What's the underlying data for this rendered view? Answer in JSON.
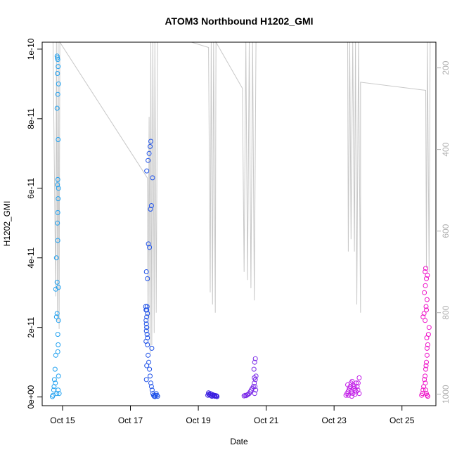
{
  "chart_data": {
    "type": "scatter",
    "title": "ATOM3 Northbound H1202_GMI",
    "xlabel": "Date",
    "ylabel": "H1202_GMI",
    "y2label": "",
    "x_ticks": [
      "Oct 15",
      "Oct 17",
      "Oct 19",
      "Oct 21",
      "Oct 23",
      "Oct 25"
    ],
    "x_tick_days": [
      15,
      17,
      19,
      21,
      23,
      25
    ],
    "xlim": [
      14.4,
      26.0
    ],
    "y_ticks": [
      "0e+00",
      "2e-11",
      "4e-11",
      "6e-11",
      "8e-11",
      "1e-10"
    ],
    "y_tick_values": [
      0,
      2e-11,
      4e-11,
      6e-11,
      8e-11,
      1e-10
    ],
    "ylim": [
      -2.5e-12,
      1.02e-10
    ],
    "y2_ticks": [
      "200",
      "400",
      "600",
      "800",
      "1000"
    ],
    "y2_tick_values": [
      200,
      400,
      600,
      800,
      1000
    ],
    "y2lim": [
      1028,
      137
    ],
    "grid": false,
    "legend": "none",
    "flight_colors": [
      "#1ea0f0",
      "#1f52e8",
      "#3a1ee0",
      "#7a28e8",
      "#c21ee8",
      "#ee12c8"
    ],
    "pressure_color": "#c8c8c8",
    "pressure_series": [
      [
        14.72,
        137
      ],
      [
        14.8,
        760
      ],
      [
        14.82,
        137
      ],
      [
        14.85,
        820
      ],
      [
        14.87,
        137
      ],
      [
        14.9,
        840
      ],
      [
        14.92,
        137
      ],
      [
        17.5,
        470
      ],
      [
        17.52,
        850
      ],
      [
        17.55,
        320
      ],
      [
        17.58,
        900
      ],
      [
        17.6,
        137
      ],
      [
        17.63,
        880
      ],
      [
        17.66,
        137
      ],
      [
        17.7,
        850
      ],
      [
        17.72,
        137
      ],
      [
        17.76,
        800
      ],
      [
        17.8,
        137
      ],
      [
        18.8,
        137
      ],
      [
        19.3,
        150
      ],
      [
        19.35,
        750
      ],
      [
        19.38,
        137
      ],
      [
        19.42,
        780
      ],
      [
        19.45,
        137
      ],
      [
        19.5,
        800
      ],
      [
        19.52,
        137
      ],
      [
        20.3,
        250
      ],
      [
        20.35,
        700
      ],
      [
        20.4,
        137
      ],
      [
        20.45,
        720
      ],
      [
        20.5,
        137
      ],
      [
        20.55,
        740
      ],
      [
        20.6,
        137
      ],
      [
        20.65,
        770
      ],
      [
        20.7,
        137
      ],
      [
        23.4,
        137
      ],
      [
        23.42,
        650
      ],
      [
        23.46,
        137
      ],
      [
        23.5,
        620
      ],
      [
        23.55,
        137
      ],
      [
        23.6,
        650
      ],
      [
        23.63,
        137
      ],
      [
        23.67,
        780
      ],
      [
        23.72,
        137
      ],
      [
        23.78,
        800
      ],
      [
        23.78,
        235
      ],
      [
        25.7,
        255
      ],
      [
        25.72,
        690
      ],
      [
        25.75,
        137
      ],
      [
        25.8,
        700
      ],
      [
        25.83,
        137
      ]
    ],
    "series": [
      {
        "x": [
          14.7,
          14.72,
          14.74,
          14.76,
          14.78,
          14.8,
          14.82,
          14.84,
          14.86,
          14.88,
          14.9,
          14.75,
          14.79,
          14.83,
          14.87,
          14.8,
          14.84,
          14.88,
          14.82,
          14.86,
          14.85,
          14.86,
          14.87,
          14.88,
          14.85,
          14.86,
          14.87,
          14.84,
          14.86,
          14.88,
          14.85,
          14.87,
          14.86,
          14.84,
          14.85,
          14.87,
          14.86,
          14.88
        ],
        "y": [
          1e-13,
          5e-13,
          2e-12,
          5e-12,
          8e-12,
          1.2e-11,
          2.3e-11,
          2.4e-11,
          1.8e-11,
          2.2e-11,
          1e-12,
          3e-12,
          4e-12,
          1e-12,
          2e-12,
          3.1e-11,
          3.3e-11,
          3.15e-11,
          4e-11,
          4.5e-11,
          5e-11,
          5.3e-11,
          5.7e-11,
          6e-11,
          6.1e-11,
          6.25e-11,
          7.4e-11,
          8.3e-11,
          8.7e-11,
          9e-11,
          9.3e-11,
          9.5e-11,
          9.7e-11,
          9.8e-11,
          9.75e-11,
          1.5e-11,
          1.3e-11,
          6e-12
        ]
      },
      {
        "x": [
          17.45,
          17.46,
          17.47,
          17.48,
          17.49,
          17.5,
          17.52,
          17.54,
          17.56,
          17.58,
          17.6,
          17.62,
          17.64,
          17.66,
          17.68,
          17.7,
          17.72,
          17.74,
          17.76,
          17.78,
          17.8,
          17.47,
          17.5,
          17.53,
          17.56,
          17.59,
          17.62,
          17.65,
          17.48,
          17.52,
          17.55,
          17.58,
          17.6,
          17.63,
          17.5,
          17.48,
          17.49,
          17.48,
          17.5,
          17.46,
          17.48,
          17.47,
          17.46,
          17.48,
          17.47
        ],
        "y": [
          2.6e-11,
          2.5e-11,
          2.1e-11,
          2e-11,
          1.8e-11,
          1.5e-11,
          1.2e-11,
          1e-11,
          8e-12,
          6e-12,
          4e-12,
          3e-12,
          2e-12,
          1e-12,
          5e-13,
          2e-13,
          1e-13,
          5e-13,
          1e-12,
          5e-13,
          2e-13,
          3.6e-11,
          3.4e-11,
          4.4e-11,
          4.3e-11,
          5.4e-11,
          5.5e-11,
          6.3e-11,
          6.5e-11,
          6.8e-11,
          7e-11,
          7.2e-11,
          7.35e-11,
          1.4e-11,
          1.7e-11,
          2e-11,
          2.6e-11,
          2.5e-11,
          2.4e-11,
          2.2e-11,
          2.3e-11,
          1.9e-11,
          1.6e-11,
          9e-12,
          5e-12
        ]
      },
      {
        "x": [
          19.28,
          19.31,
          19.34,
          19.37,
          19.4,
          19.43,
          19.46,
          19.49,
          19.52,
          19.55,
          19.3,
          19.36,
          19.42,
          19.48,
          19.54
        ],
        "y": [
          5e-13,
          8e-13,
          6e-13,
          4e-13,
          2e-13,
          5e-13,
          3e-13,
          2e-13,
          4e-13,
          1e-13,
          1.2e-12,
          1e-12,
          7e-13,
          5e-13,
          3e-13
        ]
      },
      {
        "x": [
          20.35,
          20.38,
          20.41,
          20.44,
          20.47,
          20.5,
          20.53,
          20.56,
          20.59,
          20.62,
          20.65,
          20.68,
          20.7,
          20.64,
          20.66,
          20.68,
          20.65,
          20.67,
          20.69,
          20.66
        ],
        "y": [
          3e-13,
          5e-13,
          4e-13,
          6e-13,
          8e-13,
          1e-12,
          1.5e-12,
          2e-12,
          2.5e-12,
          3e-12,
          4e-12,
          5e-12,
          6e-12,
          8e-12,
          1e-11,
          1.1e-11,
          5.5e-12,
          3e-12,
          2e-12,
          1e-12
        ]
      },
      {
        "x": [
          23.35,
          23.38,
          23.41,
          23.44,
          23.47,
          23.5,
          23.53,
          23.56,
          23.59,
          23.62,
          23.65,
          23.68,
          23.71,
          23.74,
          23.4,
          23.45,
          23.5,
          23.55,
          23.6,
          23.65,
          23.7,
          23.74,
          23.42,
          23.52,
          23.62
        ],
        "y": [
          5e-13,
          1e-12,
          1.5e-12,
          2e-12,
          3e-12,
          4e-12,
          4.5e-12,
          3.5e-12,
          2.5e-12,
          2e-12,
          1.5e-12,
          3e-12,
          4e-12,
          5.5e-12,
          3.5e-12,
          2.5e-12,
          1.5e-12,
          1e-12,
          3e-12,
          4e-12,
          2e-12,
          1e-12,
          5e-13,
          2e-13,
          8e-13
        ]
      },
      {
        "x": [
          25.58,
          25.6,
          25.62,
          25.64,
          25.66,
          25.68,
          25.7,
          25.72,
          25.74,
          25.76,
          25.78,
          25.8,
          25.62,
          25.65,
          25.68,
          25.71,
          25.74,
          25.66,
          25.69,
          25.72,
          25.75,
          25.68,
          25.7,
          25.72,
          25.74,
          25.73,
          25.71,
          25.69,
          25.7,
          25.72,
          25.74,
          25.76
        ],
        "y": [
          5e-13,
          1e-12,
          2e-12,
          3e-12,
          5e-12,
          6e-12,
          8e-12,
          1e-11,
          1.2e-11,
          1.5e-11,
          1.8e-11,
          2e-11,
          2.3e-11,
          2.4e-11,
          2.2e-11,
          2.6e-11,
          2.8e-11,
          3e-11,
          3.2e-11,
          3.4e-11,
          3.5e-11,
          3.6e-11,
          3.7e-11,
          2.5e-11,
          1.4e-11,
          1.7e-11,
          9e-12,
          4e-12,
          2e-12,
          1e-12,
          5e-13,
          2e-13
        ]
      }
    ]
  }
}
